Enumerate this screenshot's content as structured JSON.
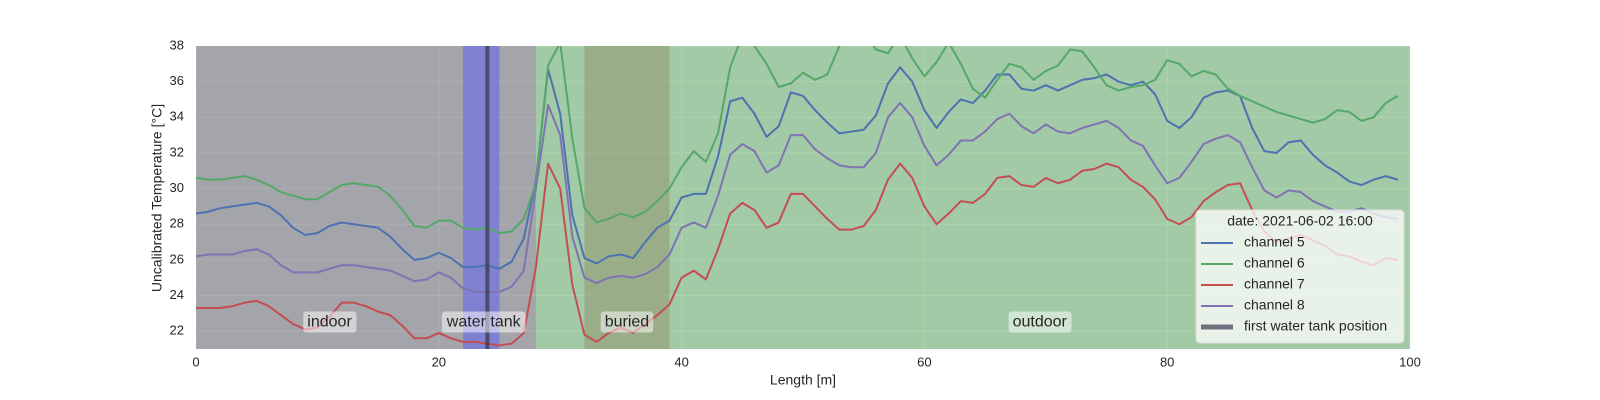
{
  "chart_data": {
    "type": "line",
    "xlabel": "Length [m]",
    "ylabel": "Uncalibrated Temperature [°C]",
    "x": [
      0,
      1,
      2,
      3,
      4,
      5,
      6,
      7,
      8,
      9,
      10,
      11,
      12,
      13,
      14,
      15,
      16,
      17,
      18,
      19,
      20,
      21,
      22,
      23,
      24,
      25,
      26,
      27,
      28,
      29,
      30,
      31,
      32,
      33,
      34,
      35,
      36,
      37,
      38,
      39,
      40,
      41,
      42,
      43,
      44,
      45,
      46,
      47,
      48,
      49,
      50,
      51,
      52,
      53,
      54,
      55,
      56,
      57,
      58,
      59,
      60,
      61,
      62,
      63,
      64,
      65,
      66,
      67,
      68,
      69,
      70,
      71,
      72,
      73,
      74,
      75,
      76,
      77,
      78,
      79,
      80,
      81,
      82,
      83,
      84,
      85,
      86,
      87,
      88,
      89,
      90,
      91,
      92,
      93,
      94,
      95,
      96,
      97,
      98,
      99
    ],
    "series": [
      {
        "name": "channel 5",
        "color": "#4c72b0",
        "values": [
          28.6,
          28.7,
          28.9,
          29.0,
          29.1,
          29.2,
          29.0,
          28.5,
          27.8,
          27.4,
          27.5,
          27.9,
          28.1,
          28.0,
          27.9,
          27.8,
          27.3,
          26.6,
          26.0,
          26.1,
          26.4,
          26.1,
          25.6,
          25.6,
          25.7,
          25.5,
          25.9,
          27.2,
          30.5,
          36.7,
          34.2,
          28.5,
          26.1,
          25.8,
          26.2,
          26.3,
          26.1,
          27.0,
          27.8,
          28.2,
          29.5,
          29.7,
          29.7,
          31.8,
          34.9,
          35.1,
          34.2,
          32.9,
          33.5,
          35.4,
          35.2,
          34.4,
          33.7,
          33.1,
          33.2,
          33.3,
          34.1,
          35.9,
          36.8,
          36.0,
          34.4,
          33.4,
          34.3,
          35.0,
          34.8,
          35.5,
          36.4,
          36.4,
          35.6,
          35.5,
          35.8,
          35.5,
          35.8,
          36.1,
          36.2,
          36.4,
          36.0,
          35.8,
          36.0,
          35.3,
          33.8,
          33.4,
          34.0,
          35.1,
          35.4,
          35.5,
          35.2,
          33.4,
          32.1,
          32.0,
          32.6,
          32.7,
          31.9,
          31.3,
          30.9,
          30.4,
          30.2,
          30.5,
          30.7,
          30.5
        ]
      },
      {
        "name": "channel 6",
        "color": "#55a868",
        "values": [
          30.6,
          30.5,
          30.5,
          30.6,
          30.7,
          30.5,
          30.2,
          29.8,
          29.6,
          29.4,
          29.4,
          29.8,
          30.2,
          30.3,
          30.2,
          30.1,
          29.6,
          28.8,
          27.9,
          27.8,
          28.2,
          28.2,
          27.8,
          27.7,
          27.8,
          27.5,
          27.6,
          28.3,
          30.3,
          36.9,
          38.2,
          32.8,
          28.9,
          28.1,
          28.3,
          28.6,
          28.4,
          28.7,
          29.3,
          30.0,
          31.2,
          32.1,
          31.5,
          33.1,
          36.8,
          38.6,
          38.0,
          37.0,
          35.7,
          35.9,
          36.5,
          36.1,
          36.4,
          38.0,
          39.0,
          38.9,
          37.8,
          37.6,
          38.6,
          37.3,
          36.3,
          37.1,
          38.2,
          37.0,
          35.6,
          35.1,
          36.1,
          37.0,
          36.8,
          36.1,
          36.6,
          36.9,
          37.8,
          37.7,
          36.8,
          35.8,
          35.5,
          35.7,
          35.8,
          36.1,
          37.2,
          37.0,
          36.3,
          36.6,
          36.4,
          35.6,
          35.2,
          34.9,
          34.6,
          34.3,
          34.1,
          33.9,
          33.7,
          33.9,
          34.4,
          34.3,
          33.8,
          34.0,
          34.8,
          35.2
        ]
      },
      {
        "name": "channel 7",
        "color": "#c44e52",
        "values": [
          23.3,
          23.3,
          23.3,
          23.4,
          23.6,
          23.7,
          23.4,
          22.9,
          22.4,
          22.1,
          22.2,
          22.8,
          23.6,
          23.6,
          23.4,
          23.1,
          22.9,
          22.3,
          21.6,
          21.6,
          21.9,
          21.6,
          21.4,
          21.4,
          21.3,
          21.2,
          21.3,
          21.9,
          25.6,
          31.4,
          30.0,
          24.6,
          21.8,
          21.4,
          21.9,
          22.2,
          21.9,
          22.4,
          22.9,
          23.5,
          25.0,
          25.4,
          24.9,
          26.6,
          28.6,
          29.2,
          28.8,
          27.8,
          28.1,
          29.7,
          29.7,
          29.0,
          28.3,
          27.7,
          27.7,
          27.9,
          28.8,
          30.5,
          31.4,
          30.6,
          29.0,
          28.0,
          28.6,
          29.3,
          29.2,
          29.7,
          30.6,
          30.7,
          30.2,
          30.1,
          30.6,
          30.3,
          30.5,
          31.0,
          31.1,
          31.4,
          31.2,
          30.5,
          30.1,
          29.4,
          28.3,
          28.0,
          28.4,
          29.3,
          29.8,
          30.2,
          30.3,
          28.8,
          27.6,
          27.0,
          27.2,
          27.4,
          27.1,
          26.8,
          26.3,
          26.2,
          25.9,
          25.7,
          26.1,
          26.0
        ]
      },
      {
        "name": "channel 8",
        "color": "#8172b2",
        "values": [
          26.2,
          26.3,
          26.3,
          26.3,
          26.5,
          26.6,
          26.3,
          25.7,
          25.3,
          25.3,
          25.3,
          25.5,
          25.7,
          25.7,
          25.6,
          25.5,
          25.4,
          25.1,
          24.8,
          24.9,
          25.3,
          25.0,
          24.4,
          24.2,
          24.2,
          24.2,
          24.5,
          25.4,
          30.0,
          34.7,
          33.0,
          27.3,
          25.0,
          24.7,
          25.0,
          25.1,
          25.0,
          25.2,
          25.6,
          26.3,
          27.8,
          28.1,
          27.8,
          29.6,
          31.9,
          32.5,
          32.1,
          30.9,
          31.3,
          33.0,
          33.0,
          32.2,
          31.7,
          31.3,
          31.2,
          31.2,
          32.0,
          34.0,
          34.8,
          34.0,
          32.4,
          31.3,
          31.9,
          32.7,
          32.7,
          33.2,
          33.9,
          34.2,
          33.5,
          33.1,
          33.6,
          33.2,
          33.1,
          33.4,
          33.6,
          33.8,
          33.4,
          32.7,
          32.4,
          31.3,
          30.3,
          30.6,
          31.5,
          32.5,
          32.8,
          33.0,
          32.6,
          31.2,
          29.9,
          29.5,
          29.9,
          29.8,
          29.3,
          29.0,
          28.7,
          28.7,
          28.9,
          28.6,
          28.4,
          28.3
        ]
      }
    ],
    "regions": [
      {
        "label": "indoor",
        "start": 0,
        "end": 28,
        "color": "#5e5e64",
        "label_at": [
          11,
          22.5
        ]
      },
      {
        "label": "water tank",
        "start": 22,
        "end": 25,
        "color": "#5c5cf8",
        "label_at": [
          23.7,
          22.5
        ]
      },
      {
        "label": "buried",
        "start": 32,
        "end": 39,
        "color": "#c67676",
        "label_at": [
          35.5,
          22.5
        ]
      },
      {
        "label": "outdoor",
        "start": 28,
        "end": 100,
        "color": "#5aaa5c",
        "label_at": [
          69.5,
          22.5
        ]
      }
    ],
    "vline": {
      "name": "first water tank position",
      "x": 24,
      "color": "#3c3c50"
    },
    "legend_title": "date: 2021-06-02 16:00",
    "legend": "lower right",
    "grid": true,
    "xlim": [
      0,
      100
    ],
    "xticks": [
      0,
      20,
      40,
      60,
      80,
      100
    ],
    "ylim": [
      21,
      38
    ],
    "yticks": [
      22,
      24,
      26,
      28,
      30,
      32,
      34,
      36,
      38
    ]
  }
}
